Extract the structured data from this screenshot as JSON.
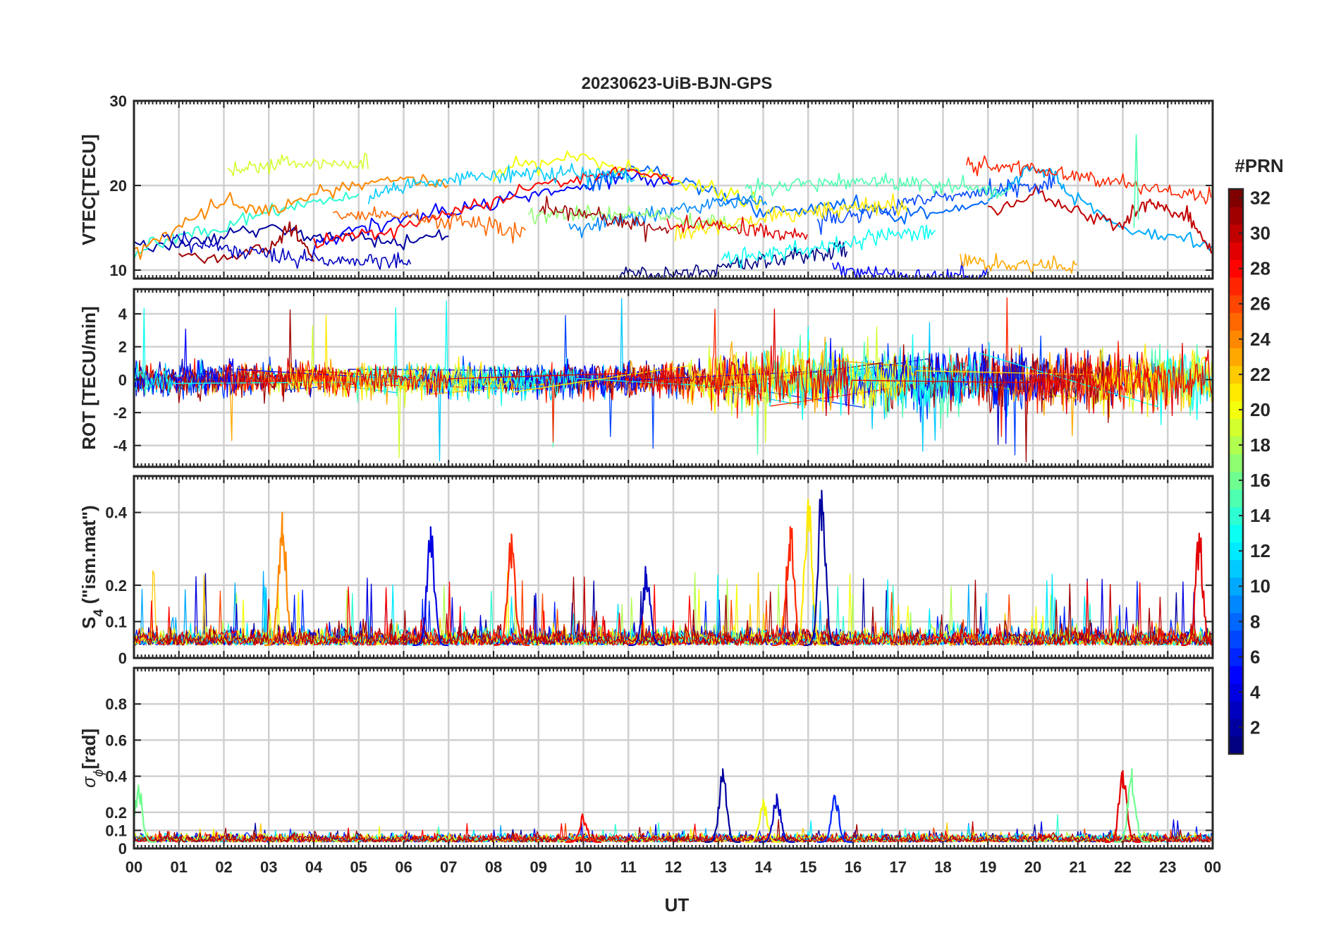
{
  "figure": {
    "title": "20230623-UiB-BJN-GPS",
    "xlabel": "UT",
    "x_ticks": [
      "00",
      "01",
      "02",
      "03",
      "04",
      "05",
      "06",
      "07",
      "08",
      "09",
      "10",
      "11",
      "12",
      "13",
      "14",
      "15",
      "16",
      "17",
      "18",
      "19",
      "20",
      "21",
      "22",
      "23",
      "00"
    ]
  },
  "colorbar": {
    "title": "#PRN",
    "min": 1,
    "max": 32,
    "ticks": [
      2,
      4,
      6,
      8,
      10,
      12,
      14,
      16,
      18,
      20,
      22,
      24,
      26,
      28,
      30,
      32
    ],
    "colormap": "jet",
    "levels": 32
  },
  "chart_data": [
    {
      "type": "line",
      "panel": "vtec",
      "ylabel": "VTEC[TECU]",
      "xlim": [
        0,
        24
      ],
      "ylim": [
        9,
        30
      ],
      "yticks": [
        10,
        20,
        30
      ],
      "grid": true,
      "series_note": "one trace per PRN (1-32), colored by PRN",
      "representative_curves": [
        {
          "prn": 2,
          "x": [
            0.0,
            1.0,
            2.0,
            3.0,
            4.0,
            5.0,
            6.0,
            7.0
          ],
          "y": [
            13,
            13,
            14,
            15,
            14,
            14,
            13,
            14
          ]
        },
        {
          "prn": 5,
          "x": [
            4.0,
            5.0,
            6.0,
            7.0,
            8.0,
            9.0,
            10.0,
            11.0,
            12.0
          ],
          "y": [
            13,
            15,
            16,
            17,
            18,
            19,
            20,
            21,
            20
          ]
        },
        {
          "prn": 8,
          "x": [
            10.0,
            11.0,
            12.0,
            13.0,
            14.0,
            15.0,
            16.0,
            17.0,
            18.0,
            19.0
          ],
          "y": [
            20,
            22,
            21,
            19,
            17,
            17,
            18,
            16,
            17,
            18
          ]
        },
        {
          "prn": 14,
          "x": [
            0.0,
            1.0,
            2.0,
            3.0,
            4.0,
            5.0
          ],
          "y": [
            12,
            14,
            15,
            17,
            18,
            19
          ]
        },
        {
          "prn": 20,
          "x": [
            8.0,
            9.0,
            10.0,
            11.0,
            12.0,
            13.0,
            14.0
          ],
          "y": [
            21,
            23,
            23,
            22,
            21,
            19,
            18
          ]
        },
        {
          "prn": 24,
          "x": [
            0.0,
            1.0,
            2.0,
            3.0,
            4.0,
            5.0,
            6.0,
            7.0
          ],
          "y": [
            12,
            15,
            18,
            17,
            19,
            20,
            21,
            20
          ]
        },
        {
          "prn": 28,
          "x": [
            4.0,
            5.0,
            6.0,
            7.0,
            8.0,
            9.0,
            10.0,
            11.0,
            12.0
          ],
          "y": [
            13,
            14,
            15,
            17,
            18,
            20,
            21,
            22,
            21
          ]
        },
        {
          "prn": 31,
          "x": [
            1.0,
            2.0,
            3.0,
            3.5,
            4.0
          ],
          "y": [
            12,
            11,
            13,
            15,
            11
          ]
        },
        {
          "prn": 10,
          "x": [
            19.0,
            19.5,
            20.0,
            20.5,
            21.0,
            22.0,
            23.0,
            24.0
          ],
          "y": [
            18,
            20,
            22,
            21,
            18,
            15,
            14,
            13
          ]
        },
        {
          "prn": 30,
          "x": [
            19.0,
            20.0,
            21.0,
            22.0,
            22.5,
            23.0,
            23.5,
            24.0
          ],
          "y": [
            17,
            19,
            17,
            15,
            18,
            17,
            16,
            12
          ]
        }
      ],
      "annotations": [
        {
          "x": 22.3,
          "y": 26,
          "prn": 15,
          "note": "spike"
        }
      ]
    },
    {
      "type": "line",
      "panel": "rot",
      "ylabel": "ROT [TECU/min]",
      "xlim": [
        0,
        24
      ],
      "ylim": [
        -5.3,
        5.5
      ],
      "yticks": [
        -4,
        -2,
        0,
        2,
        4
      ],
      "grid": true,
      "description_values": {
        "typical_amplitude": 0.6,
        "max": 5.4,
        "min": -5.3
      }
    },
    {
      "type": "line",
      "panel": "s4",
      "ylabel": "S4 (\"ism.mat\")",
      "ylabel_main": "S",
      "ylabel_sub": "4",
      "ylabel_rest": " (\"ism.mat\")",
      "xlim": [
        0,
        24
      ],
      "ylim": [
        0,
        0.5
      ],
      "yticks": [
        0,
        0.1,
        0.2,
        0.4
      ],
      "grid": true,
      "peaks": [
        {
          "x": 3.3,
          "y": 0.4,
          "prn": 24
        },
        {
          "x": 6.6,
          "y": 0.36,
          "prn": 4
        },
        {
          "x": 8.4,
          "y": 0.34,
          "prn": 27
        },
        {
          "x": 11.4,
          "y": 0.23,
          "prn": 3
        },
        {
          "x": 14.6,
          "y": 0.36,
          "prn": 27
        },
        {
          "x": 15.0,
          "y": 0.43,
          "prn": 21
        },
        {
          "x": 15.3,
          "y": 0.46,
          "prn": 2
        },
        {
          "x": 23.7,
          "y": 0.33,
          "prn": 29
        }
      ]
    },
    {
      "type": "line",
      "panel": "sigma_phi",
      "ylabel_symbol": "σ",
      "ylabel_sub": "ϕ",
      "ylabel_rest": "[rad]",
      "xlim": [
        0,
        24
      ],
      "ylim": [
        0,
        1.0
      ],
      "yticks": [
        0,
        0.1,
        0.2,
        0.4,
        0.6,
        0.8
      ],
      "grid": true,
      "peaks": [
        {
          "x": 0.1,
          "y": 0.35,
          "prn": 16
        },
        {
          "x": 10.0,
          "y": 0.16,
          "prn": 28
        },
        {
          "x": 13.1,
          "y": 0.44,
          "prn": 2
        },
        {
          "x": 14.0,
          "y": 0.27,
          "prn": 20
        },
        {
          "x": 14.3,
          "y": 0.3,
          "prn": 3
        },
        {
          "x": 15.6,
          "y": 0.28,
          "prn": 6
        },
        {
          "x": 22.0,
          "y": 0.43,
          "prn": 29
        },
        {
          "x": 22.2,
          "y": 0.44,
          "prn": 16
        }
      ]
    }
  ]
}
